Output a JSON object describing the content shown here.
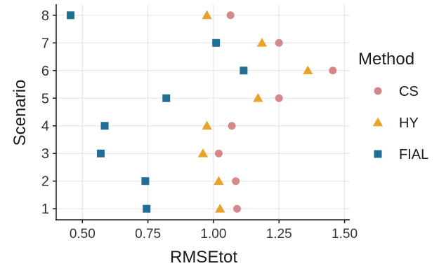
{
  "chart_data": {
    "type": "scatter",
    "title": "",
    "xlabel": "RMSEtot",
    "ylabel": "Scenario",
    "xlim": [
      0.4,
      1.52
    ],
    "ylim": [
      0.6,
      8.4
    ],
    "x_ticks": [
      "0.50",
      "0.75",
      "1.00",
      "1.25",
      "1.50"
    ],
    "x_tick_values": [
      0.5,
      0.75,
      1.0,
      1.25,
      1.5
    ],
    "categories": [
      "1",
      "2",
      "3",
      "4",
      "5",
      "6",
      "7",
      "8"
    ],
    "grid": true,
    "legend_position": "right",
    "legend_title": "Method",
    "series": [
      {
        "name": "CS",
        "marker": "circle",
        "color": "#D4888A",
        "points": [
          {
            "scenario": 1,
            "value": 1.09
          },
          {
            "scenario": 2,
            "value": 1.085
          },
          {
            "scenario": 3,
            "value": 1.02
          },
          {
            "scenario": 4,
            "value": 1.07
          },
          {
            "scenario": 5,
            "value": 1.25
          },
          {
            "scenario": 6,
            "value": 1.455
          },
          {
            "scenario": 7,
            "value": 1.25
          },
          {
            "scenario": 8,
            "value": 1.065
          }
        ]
      },
      {
        "name": "HY",
        "marker": "triangle",
        "color": "#E7A32B",
        "points": [
          {
            "scenario": 1,
            "value": 1.025
          },
          {
            "scenario": 2,
            "value": 1.02
          },
          {
            "scenario": 3,
            "value": 0.96
          },
          {
            "scenario": 4,
            "value": 0.975
          },
          {
            "scenario": 5,
            "value": 1.17
          },
          {
            "scenario": 6,
            "value": 1.36
          },
          {
            "scenario": 7,
            "value": 1.185
          },
          {
            "scenario": 8,
            "value": 0.975
          }
        ]
      },
      {
        "name": "FIAL",
        "marker": "square",
        "color": "#1F6F95",
        "points": [
          {
            "scenario": 1,
            "value": 0.745
          },
          {
            "scenario": 2,
            "value": 0.74
          },
          {
            "scenario": 3,
            "value": 0.57
          },
          {
            "scenario": 4,
            "value": 0.585
          },
          {
            "scenario": 5,
            "value": 0.82
          },
          {
            "scenario": 6,
            "value": 1.115
          },
          {
            "scenario": 7,
            "value": 1.01
          },
          {
            "scenario": 8,
            "value": 0.455
          }
        ]
      }
    ]
  }
}
